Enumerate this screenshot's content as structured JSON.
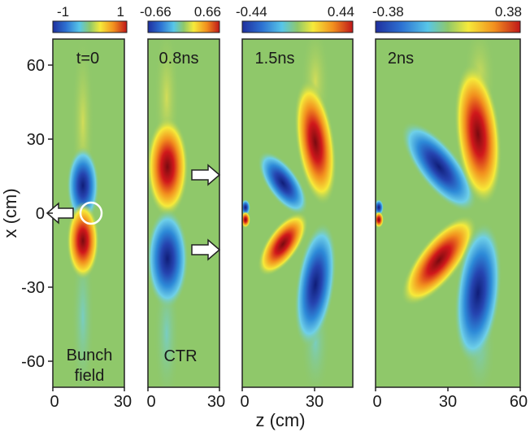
{
  "figure": {
    "y_axis_label": "x (cm)",
    "x_axis_label": "z (cm)",
    "y_ticks": [
      "60",
      "30",
      "0",
      "-30",
      "-60"
    ],
    "panels": [
      {
        "time_label": "t=0",
        "colorbar_min": "-1",
        "colorbar_max": "1",
        "x_ticks": [
          "0",
          "30"
        ],
        "annotation_line1": "Bunch",
        "annotation_line2": "field"
      },
      {
        "time_label": "0.8ns",
        "colorbar_min": "-0.66",
        "colorbar_max": "0.66",
        "x_ticks": [
          "0",
          "30"
        ],
        "annotation_line1": "CTR",
        "annotation_line2": ""
      },
      {
        "time_label": "1.5ns",
        "colorbar_min": "-0.44",
        "colorbar_max": "0.44",
        "x_ticks": [
          "0",
          "30"
        ],
        "annotation_line1": "",
        "annotation_line2": ""
      },
      {
        "time_label": "2ns",
        "colorbar_min": "-0.38",
        "colorbar_max": "0.38",
        "x_ticks": [
          "0",
          "30",
          "60"
        ],
        "annotation_line1": "",
        "annotation_line2": ""
      }
    ]
  },
  "colors": {
    "background_field": "#8fc86a",
    "positive": "#c0171a",
    "negative": "#1f3aa8",
    "colormap": [
      "#1f2f9e",
      "#2d72d2",
      "#57c6e8",
      "#8fc86a",
      "#f6ea3a",
      "#f2901e",
      "#c0171a"
    ]
  }
}
